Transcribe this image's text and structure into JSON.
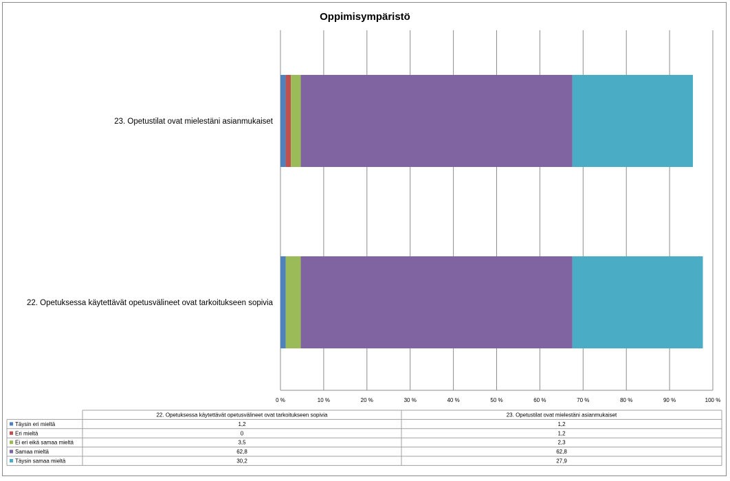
{
  "chart_data": {
    "type": "bar",
    "orientation": "horizontal",
    "stacked": "percent",
    "title": "Oppimisympäristö",
    "categories": [
      "23. Opetustilat ovat mielestäni asianmukaiset",
      "22. Opetuksessa käytettävät opetusvälineet ovat tarkoitukseen sopivia"
    ],
    "xlim": [
      0,
      100
    ],
    "x_ticks": [
      "0 %",
      "10 %",
      "20 %",
      "30 %",
      "40 %",
      "50 %",
      "60 %",
      "70 %",
      "80 %",
      "90 %",
      "100 %"
    ],
    "grid": "vertical",
    "series": [
      {
        "name": "Täysin eri mieltä",
        "color": "#4F81BD",
        "values": [
          1.2,
          1.2
        ]
      },
      {
        "name": "Eri mieltä",
        "color": "#C0504D",
        "values": [
          1.2,
          0
        ]
      },
      {
        "name": "Ei eri eikä samaa mieltä",
        "color": "#9BBB59",
        "values": [
          2.3,
          3.5
        ]
      },
      {
        "name": "Samaa mieltä",
        "color": "#8064A2",
        "values": [
          62.8,
          62.8
        ]
      },
      {
        "name": "Täysin samaa mieltä",
        "color": "#4BACC6",
        "values": [
          27.9,
          30.2
        ]
      }
    ],
    "data_table": {
      "columns": [
        "22. Opetuksessa käytettävät opetusvälineet ovat tarkoitukseen sopivia",
        "23. Opetustilat ovat mielestäni asianmukaiset"
      ],
      "rows": [
        {
          "name": "Täysin eri mieltä",
          "color": "#4F81BD",
          "values": [
            "1,2",
            "1,2"
          ]
        },
        {
          "name": "Eri mieltä",
          "color": "#C0504D",
          "values": [
            "0",
            "1,2"
          ]
        },
        {
          "name": "Ei eri eikä samaa mieltä",
          "color": "#9BBB59",
          "values": [
            "3,5",
            "2,3"
          ]
        },
        {
          "name": "Samaa mieltä",
          "color": "#8064A2",
          "values": [
            "62,8",
            "62,8"
          ]
        },
        {
          "name": "Täysin samaa mieltä",
          "color": "#4BACC6",
          "values": [
            "30,2",
            "27,9"
          ]
        }
      ]
    }
  }
}
